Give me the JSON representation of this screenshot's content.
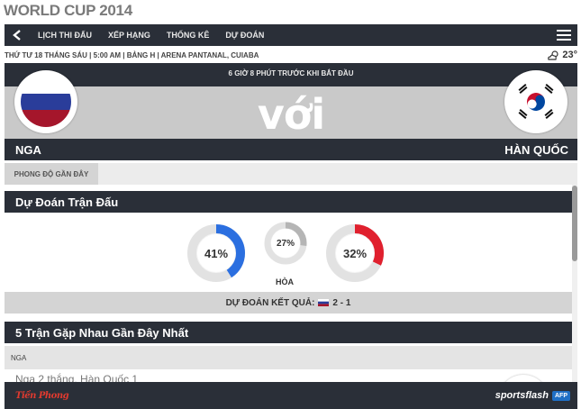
{
  "page_title": "WORLD CUP 2014",
  "nav": {
    "items": [
      "LỊCH THI ĐẤU",
      "XẾP HẠNG",
      "THỐNG KÊ",
      "DỰ ĐOÁN"
    ]
  },
  "match": {
    "info": "THỨ TƯ 18 THÁNG SÁU | 5:00 AM | BẢNG H | ARENA PANTANAL, CUIABA",
    "temperature": "23°",
    "countdown": "6 GIỜ 8 PHÚT TRƯỚC KHI BẮT ĐẦU",
    "vs": "với",
    "home_team": "NGA",
    "away_team": "HÀN QUỐC"
  },
  "form_tab": "PHONG ĐỘ GẦN ĐÂY",
  "prediction": {
    "header": "Dự Đoán Trận Đấu",
    "home_pct": "41%",
    "draw_pct": "27%",
    "away_pct": "32%",
    "home_value": 41,
    "draw_value": 27,
    "away_value": 32,
    "draw_label": "HÒA",
    "result_label": "DỰ ĐOÁN KẾT QUẢ:",
    "result_score": "2 - 1"
  },
  "h2h": {
    "header": "5 Trận Gặp Nhau Gần Đây Nhất",
    "tab": "NGA",
    "row_text": "Nga 2 thắng, Hàn Quốc 1"
  },
  "footer": {
    "left_logo": "Tiền Phong",
    "brand": "sportsflash",
    "afp": "AFP"
  },
  "colors": {
    "dark": "#2a2f38",
    "home_ring": "#2b6fe0",
    "away_ring": "#e0202e",
    "draw_ring": "#b5b5b5",
    "track": "#e2e2e2"
  }
}
